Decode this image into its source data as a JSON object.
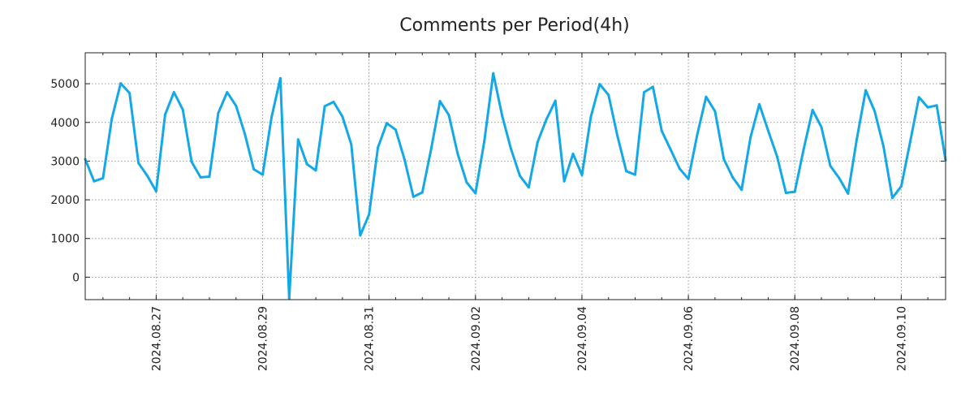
{
  "chart_data": {
    "type": "line",
    "title": "Comments per Period(4h)",
    "xlabel": "",
    "ylabel": "",
    "ylim": [
      -580,
      5800
    ],
    "yticks": [
      0,
      1000,
      2000,
      3000,
      4000,
      5000
    ],
    "xtick_labels": [
      "2024.08.27",
      "2024.08.29",
      "2024.08.31",
      "2024.09.02",
      "2024.09.04",
      "2024.09.06",
      "2024.09.08",
      "2024.09.10"
    ],
    "xtick_index": [
      8,
      20,
      32,
      44,
      56,
      68,
      80,
      92
    ],
    "grid": true,
    "color": "#13a8e8",
    "series": [
      {
        "name": "Comments",
        "values": [
          3050,
          2480,
          2560,
          4100,
          5010,
          4760,
          2950,
          2620,
          2220,
          4200,
          4780,
          4330,
          2980,
          2580,
          2600,
          4240,
          4780,
          4430,
          3700,
          2790,
          2650,
          4130,
          5140,
          -550,
          3560,
          2920,
          2760,
          4420,
          4530,
          4150,
          3430,
          1080,
          1620,
          3350,
          3980,
          3810,
          3040,
          2080,
          2190,
          3310,
          4550,
          4190,
          3180,
          2450,
          2170,
          3530,
          5270,
          4180,
          3320,
          2620,
          2320,
          3490,
          4080,
          4560,
          2480,
          3190,
          2640,
          4140,
          4990,
          4710,
          3650,
          2740,
          2650,
          4780,
          4920,
          3780,
          3300,
          2810,
          2540,
          3680,
          4660,
          4290,
          3050,
          2580,
          2260,
          3610,
          4470,
          3790,
          3120,
          2180,
          2210,
          3310,
          4320,
          3880,
          2880,
          2560,
          2160,
          3580,
          4830,
          4290,
          3380,
          2050,
          2350,
          3490,
          4650,
          4390,
          4440,
          3020
        ]
      }
    ]
  }
}
